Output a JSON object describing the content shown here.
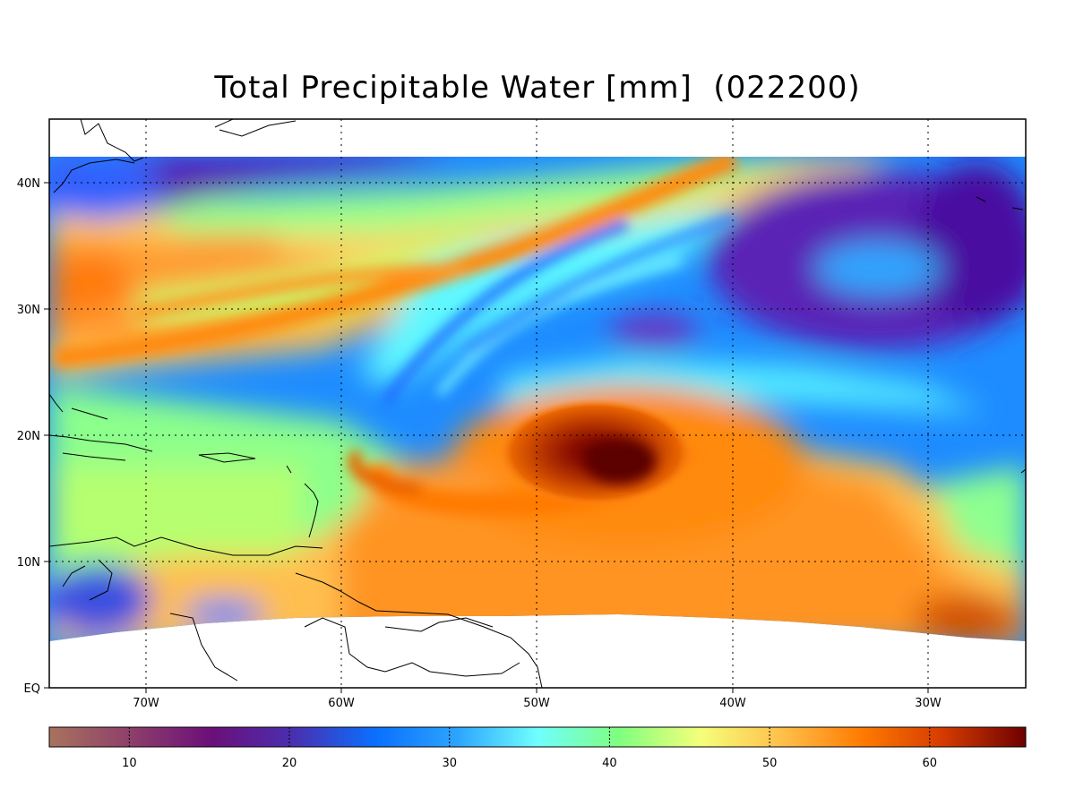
{
  "title": "Total Precipitable Water [mm]  (022200)",
  "map": {
    "units": "mm",
    "lon_range": [
      -75,
      -25
    ],
    "lat_range": [
      0,
      45
    ],
    "data_lat_range": [
      4,
      42
    ],
    "lon_ticks": [
      "70W",
      "60W",
      "50W",
      "40W",
      "30W"
    ],
    "lat_ticks": [
      "40N",
      "30N",
      "20N",
      "10N",
      "EQ"
    ],
    "gridlines": "dotted",
    "features": [
      {
        "label": "tropical cyclone core",
        "lon": -46,
        "lat": 18,
        "value_mm": 65
      },
      {
        "label": "moist plume",
        "lon": -55,
        "lat": 33,
        "value_mm": 55
      },
      {
        "label": "dry air",
        "lon": -35,
        "lat": 33,
        "value_mm": 20
      }
    ]
  },
  "colorbar": {
    "min": 5,
    "max": 66,
    "ticks": [
      "10",
      "20",
      "30",
      "40",
      "50",
      "60"
    ],
    "colors": [
      "#a8735e",
      "#8e3f6a",
      "#6b0f7a",
      "#4a2fb0",
      "#0a6fff",
      "#2ba4ff",
      "#6fffff",
      "#7fff7f",
      "#f5ff7a",
      "#ffc04a",
      "#ff7a00",
      "#d43a00",
      "#6e0000"
    ]
  }
}
